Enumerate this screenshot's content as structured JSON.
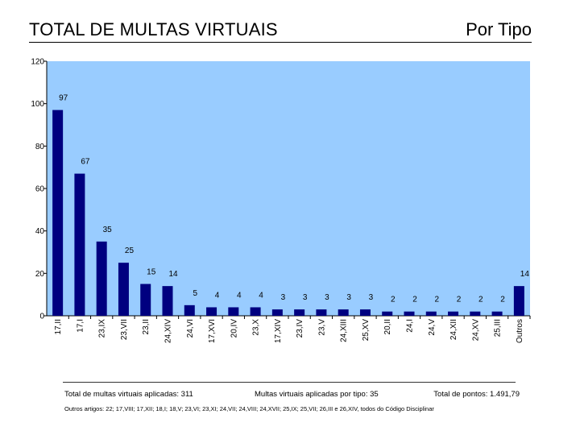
{
  "header": {
    "title": "TOTAL DE MULTAS VIRTUAIS",
    "subtitle": "Por Tipo"
  },
  "colors": {
    "plot_background": "#99ccff",
    "bar_fill": "#000080",
    "axis": "#000000"
  },
  "chart_data": {
    "type": "bar",
    "title": "TOTAL DE MULTAS VIRTUAIS",
    "xlabel": "",
    "ylabel": "",
    "ylim": [
      0,
      120
    ],
    "yticks": [
      0,
      20,
      40,
      60,
      80,
      100,
      120
    ],
    "grid": false,
    "categories": [
      "17,II",
      "17,I",
      "23,IX",
      "23,VII",
      "23,II",
      "24,XIV",
      "24,VI",
      "17,XVI",
      "20,IV",
      "23,X",
      "17,XIV",
      "23,IV",
      "23,V",
      "24,XIII",
      "25,XV",
      "20,II",
      "24,I",
      "24,V",
      "24,XII",
      "24,XV",
      "25,III",
      "Outros"
    ],
    "values": [
      97,
      67,
      35,
      25,
      15,
      14,
      5,
      4,
      4,
      4,
      3,
      3,
      3,
      3,
      3,
      2,
      2,
      2,
      2,
      2,
      2,
      14
    ],
    "data_labels": [
      "97",
      "67",
      "35",
      "25",
      "15",
      "14",
      "5",
      "4",
      "4",
      "4",
      "3",
      "3",
      "3",
      "3",
      "3",
      "2",
      "2",
      "2",
      "2",
      "2",
      "2",
      "14"
    ]
  },
  "footer": {
    "total_label": "Total de multas virtuais aplicadas: 311",
    "by_type_label": "Multas virtuais aplicadas por tipo: 35",
    "points_label": "Total de pontos: 1.491,79",
    "note": "Outros artigos: 22; 17,VIII; 17,XII; 18,I; 18,V; 23,VI; 23,XI; 24,VII; 24,VIII; 24,XVII; 25,IX; 25,VII; 26,III e 26,XIV, todos do Código Disciplinar"
  }
}
